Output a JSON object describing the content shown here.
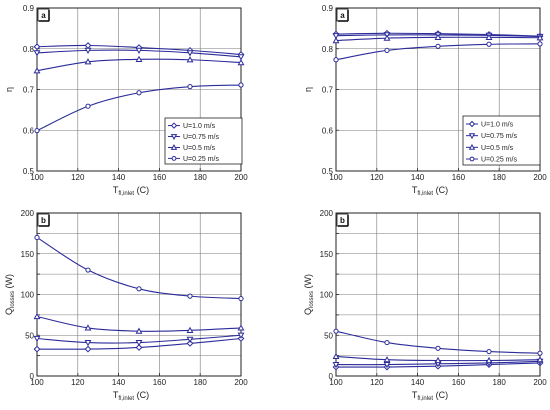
{
  "chart_data": [
    {
      "id": "eta-left",
      "type": "line",
      "panel_label": "a",
      "xlabel": "T",
      "xlabel_sub": "fl,inlet",
      "xlabel_unit": "(C)",
      "ylabel": "η",
      "ylabel_sub": "",
      "ylabel_unit": "",
      "xlim": [
        100,
        200
      ],
      "ylim": [
        0.5,
        0.9
      ],
      "xticks": [
        100,
        120,
        140,
        160,
        180,
        200
      ],
      "yticks": [
        0.5,
        0.6,
        0.7,
        0.8,
        0.9
      ],
      "ytick_labels": [
        "0.5",
        "0.6",
        "0.7",
        "0.8",
        "0.9"
      ],
      "grid": true,
      "legend": "lower-right",
      "series": [
        {
          "name": "U=1.0 m/s",
          "marker": "diamond",
          "x": [
            100,
            125,
            150,
            175,
            200
          ],
          "y": [
            0.805,
            0.808,
            0.803,
            0.796,
            0.786
          ]
        },
        {
          "name": "U=0.75 m/s",
          "marker": "triangle-down",
          "x": [
            100,
            125,
            150,
            175,
            200
          ],
          "y": [
            0.79,
            0.796,
            0.796,
            0.79,
            0.78
          ]
        },
        {
          "name": "U=0.5 m/s",
          "marker": "triangle-up",
          "x": [
            100,
            125,
            150,
            175,
            200
          ],
          "y": [
            0.746,
            0.768,
            0.774,
            0.773,
            0.766
          ]
        },
        {
          "name": "U=0.25 m/s",
          "marker": "circle",
          "x": [
            100,
            125,
            150,
            175,
            200
          ],
          "y": [
            0.599,
            0.659,
            0.692,
            0.707,
            0.711
          ]
        }
      ]
    },
    {
      "id": "eta-right",
      "type": "line",
      "panel_label": "a",
      "xlabel": "T",
      "xlabel_sub": "fl,inlet",
      "xlabel_unit": "(C)",
      "ylabel": "η",
      "ylabel_sub": "",
      "ylabel_unit": "",
      "xlim": [
        100,
        200
      ],
      "ylim": [
        0.5,
        0.9
      ],
      "xticks": [
        100,
        120,
        140,
        160,
        180,
        200
      ],
      "yticks": [
        0.5,
        0.6,
        0.7,
        0.8,
        0.9
      ],
      "ytick_labels": [
        "0.5",
        "0.6",
        "0.7",
        "0.8",
        "0.9"
      ],
      "grid": true,
      "legend": "lower-right",
      "series": [
        {
          "name": "U=1.0 m/s",
          "marker": "diamond",
          "x": [
            100,
            125,
            150,
            175,
            200
          ],
          "y": [
            0.836,
            0.838,
            0.837,
            0.835,
            0.831
          ]
        },
        {
          "name": "U=0.75 m/s",
          "marker": "triangle-down",
          "x": [
            100,
            125,
            150,
            175,
            200
          ],
          "y": [
            0.832,
            0.834,
            0.834,
            0.833,
            0.83
          ]
        },
        {
          "name": "U=0.5 m/s",
          "marker": "triangle-up",
          "x": [
            100,
            125,
            150,
            175,
            200
          ],
          "y": [
            0.82,
            0.826,
            0.828,
            0.828,
            0.827
          ]
        },
        {
          "name": "U=0.25 m/s",
          "marker": "circle",
          "x": [
            100,
            125,
            150,
            175,
            200
          ],
          "y": [
            0.773,
            0.796,
            0.806,
            0.811,
            0.812
          ]
        }
      ]
    },
    {
      "id": "q-left",
      "type": "line",
      "panel_label": "b",
      "xlabel": "T",
      "xlabel_sub": "fl,inlet",
      "xlabel_unit": "(C)",
      "ylabel": "Q",
      "ylabel_sub": "losses",
      "ylabel_unit": "(W)",
      "xlim": [
        100,
        200
      ],
      "ylim": [
        0,
        200
      ],
      "xticks": [
        100,
        120,
        140,
        160,
        180,
        200
      ],
      "yticks": [
        0,
        25,
        50,
        75,
        100,
        125,
        150,
        175,
        200
      ],
      "ytick_labels": [
        "0",
        "",
        "50",
        "",
        "100",
        "",
        "150",
        "",
        "200"
      ],
      "grid": true,
      "series": [
        {
          "marker": "diamond",
          "x": [
            100,
            125,
            150,
            175,
            200
          ],
          "y": [
            33,
            33,
            35,
            40,
            46
          ]
        },
        {
          "marker": "triangle-down",
          "x": [
            100,
            125,
            150,
            175,
            200
          ],
          "y": [
            46,
            41,
            41,
            45,
            50
          ]
        },
        {
          "marker": "triangle-up",
          "x": [
            100,
            125,
            150,
            175,
            200
          ],
          "y": [
            73,
            59,
            55,
            56,
            59
          ]
        },
        {
          "marker": "circle",
          "x": [
            100,
            125,
            150,
            175,
            200
          ],
          "y": [
            170,
            130,
            107,
            98,
            95
          ]
        }
      ]
    },
    {
      "id": "q-right",
      "type": "line",
      "panel_label": "b",
      "xlabel": "T",
      "xlabel_sub": "fl,inlet",
      "xlabel_unit": "(C)",
      "ylabel": "Q",
      "ylabel_sub": "losses",
      "ylabel_unit": "(W)",
      "xlim": [
        100,
        200
      ],
      "ylim": [
        0,
        200
      ],
      "xticks": [
        100,
        120,
        140,
        160,
        180,
        200
      ],
      "yticks": [
        0,
        25,
        50,
        75,
        100,
        125,
        150,
        175,
        200
      ],
      "ytick_labels": [
        "0",
        "",
        "50",
        "",
        "100",
        "",
        "150",
        "",
        "200"
      ],
      "grid": true,
      "series": [
        {
          "marker": "diamond",
          "x": [
            100,
            125,
            150,
            175,
            200
          ],
          "y": [
            11,
            11,
            12,
            14,
            16
          ]
        },
        {
          "marker": "triangle-down",
          "x": [
            100,
            125,
            150,
            175,
            200
          ],
          "y": [
            14,
            14,
            15,
            16,
            18
          ]
        },
        {
          "marker": "triangle-up",
          "x": [
            100,
            125,
            150,
            175,
            200
          ],
          "y": [
            24,
            20,
            19,
            19,
            20
          ]
        },
        {
          "marker": "circle",
          "x": [
            100,
            125,
            150,
            175,
            200
          ],
          "y": [
            55,
            41,
            34,
            30,
            28
          ]
        }
      ]
    }
  ],
  "colors": {
    "series": "#2b2b9a",
    "grid": "#7a7a7a",
    "axis": "#222222"
  }
}
